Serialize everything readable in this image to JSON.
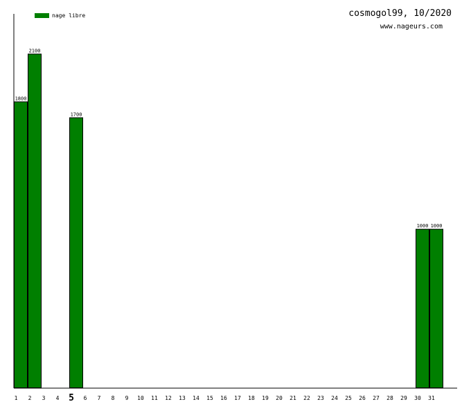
{
  "header": {
    "title": "cosmogol99, 10/2020",
    "subtitle": "www.nageurs.com"
  },
  "legend": {
    "label": "nage libre",
    "color": "#007f00"
  },
  "chart_data": {
    "type": "bar",
    "categories": [
      "1",
      "2",
      "3",
      "4",
      "5",
      "6",
      "7",
      "8",
      "9",
      "10",
      "11",
      "12",
      "13",
      "14",
      "15",
      "16",
      "17",
      "18",
      "19",
      "20",
      "21",
      "22",
      "23",
      "24",
      "25",
      "26",
      "27",
      "28",
      "29",
      "30",
      "31"
    ],
    "series": [
      {
        "name": "nage libre",
        "values": [
          1800,
          2100,
          0,
          0,
          1700,
          0,
          0,
          0,
          0,
          0,
          0,
          0,
          0,
          0,
          0,
          0,
          0,
          0,
          0,
          0,
          0,
          0,
          0,
          0,
          0,
          0,
          0,
          0,
          0,
          1000,
          1000
        ]
      }
    ],
    "highlighted_category": "5",
    "ylim": [
      0,
      2350
    ],
    "grid": false,
    "legend_position": "top-left",
    "bar_color": "#007f00"
  }
}
